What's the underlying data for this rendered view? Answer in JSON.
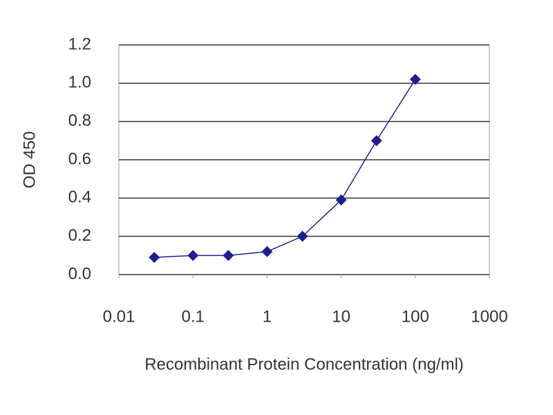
{
  "chart_data": {
    "type": "line",
    "x_label": "Recombinant Protein Concentration (ng/ml)",
    "y_label": "OD 450",
    "x": [
      0.03,
      0.1,
      0.3,
      1,
      3,
      10,
      30,
      100
    ],
    "values": [
      0.09,
      0.1,
      0.1,
      0.12,
      0.2,
      0.39,
      0.7,
      1.02
    ],
    "color": "#1f1f8f",
    "xscale": "log",
    "xlim": [
      0.01,
      1000
    ],
    "xticks": [
      0.01,
      0.1,
      1,
      10,
      100,
      1000
    ],
    "ylim": [
      0,
      1.2
    ],
    "yticks": [
      {
        "value": 0,
        "label": "0.0"
      },
      0.2,
      0.4,
      0.6,
      0.8,
      {
        "value": 1,
        "label": "1.0"
      },
      1.2
    ],
    "grid": true
  }
}
